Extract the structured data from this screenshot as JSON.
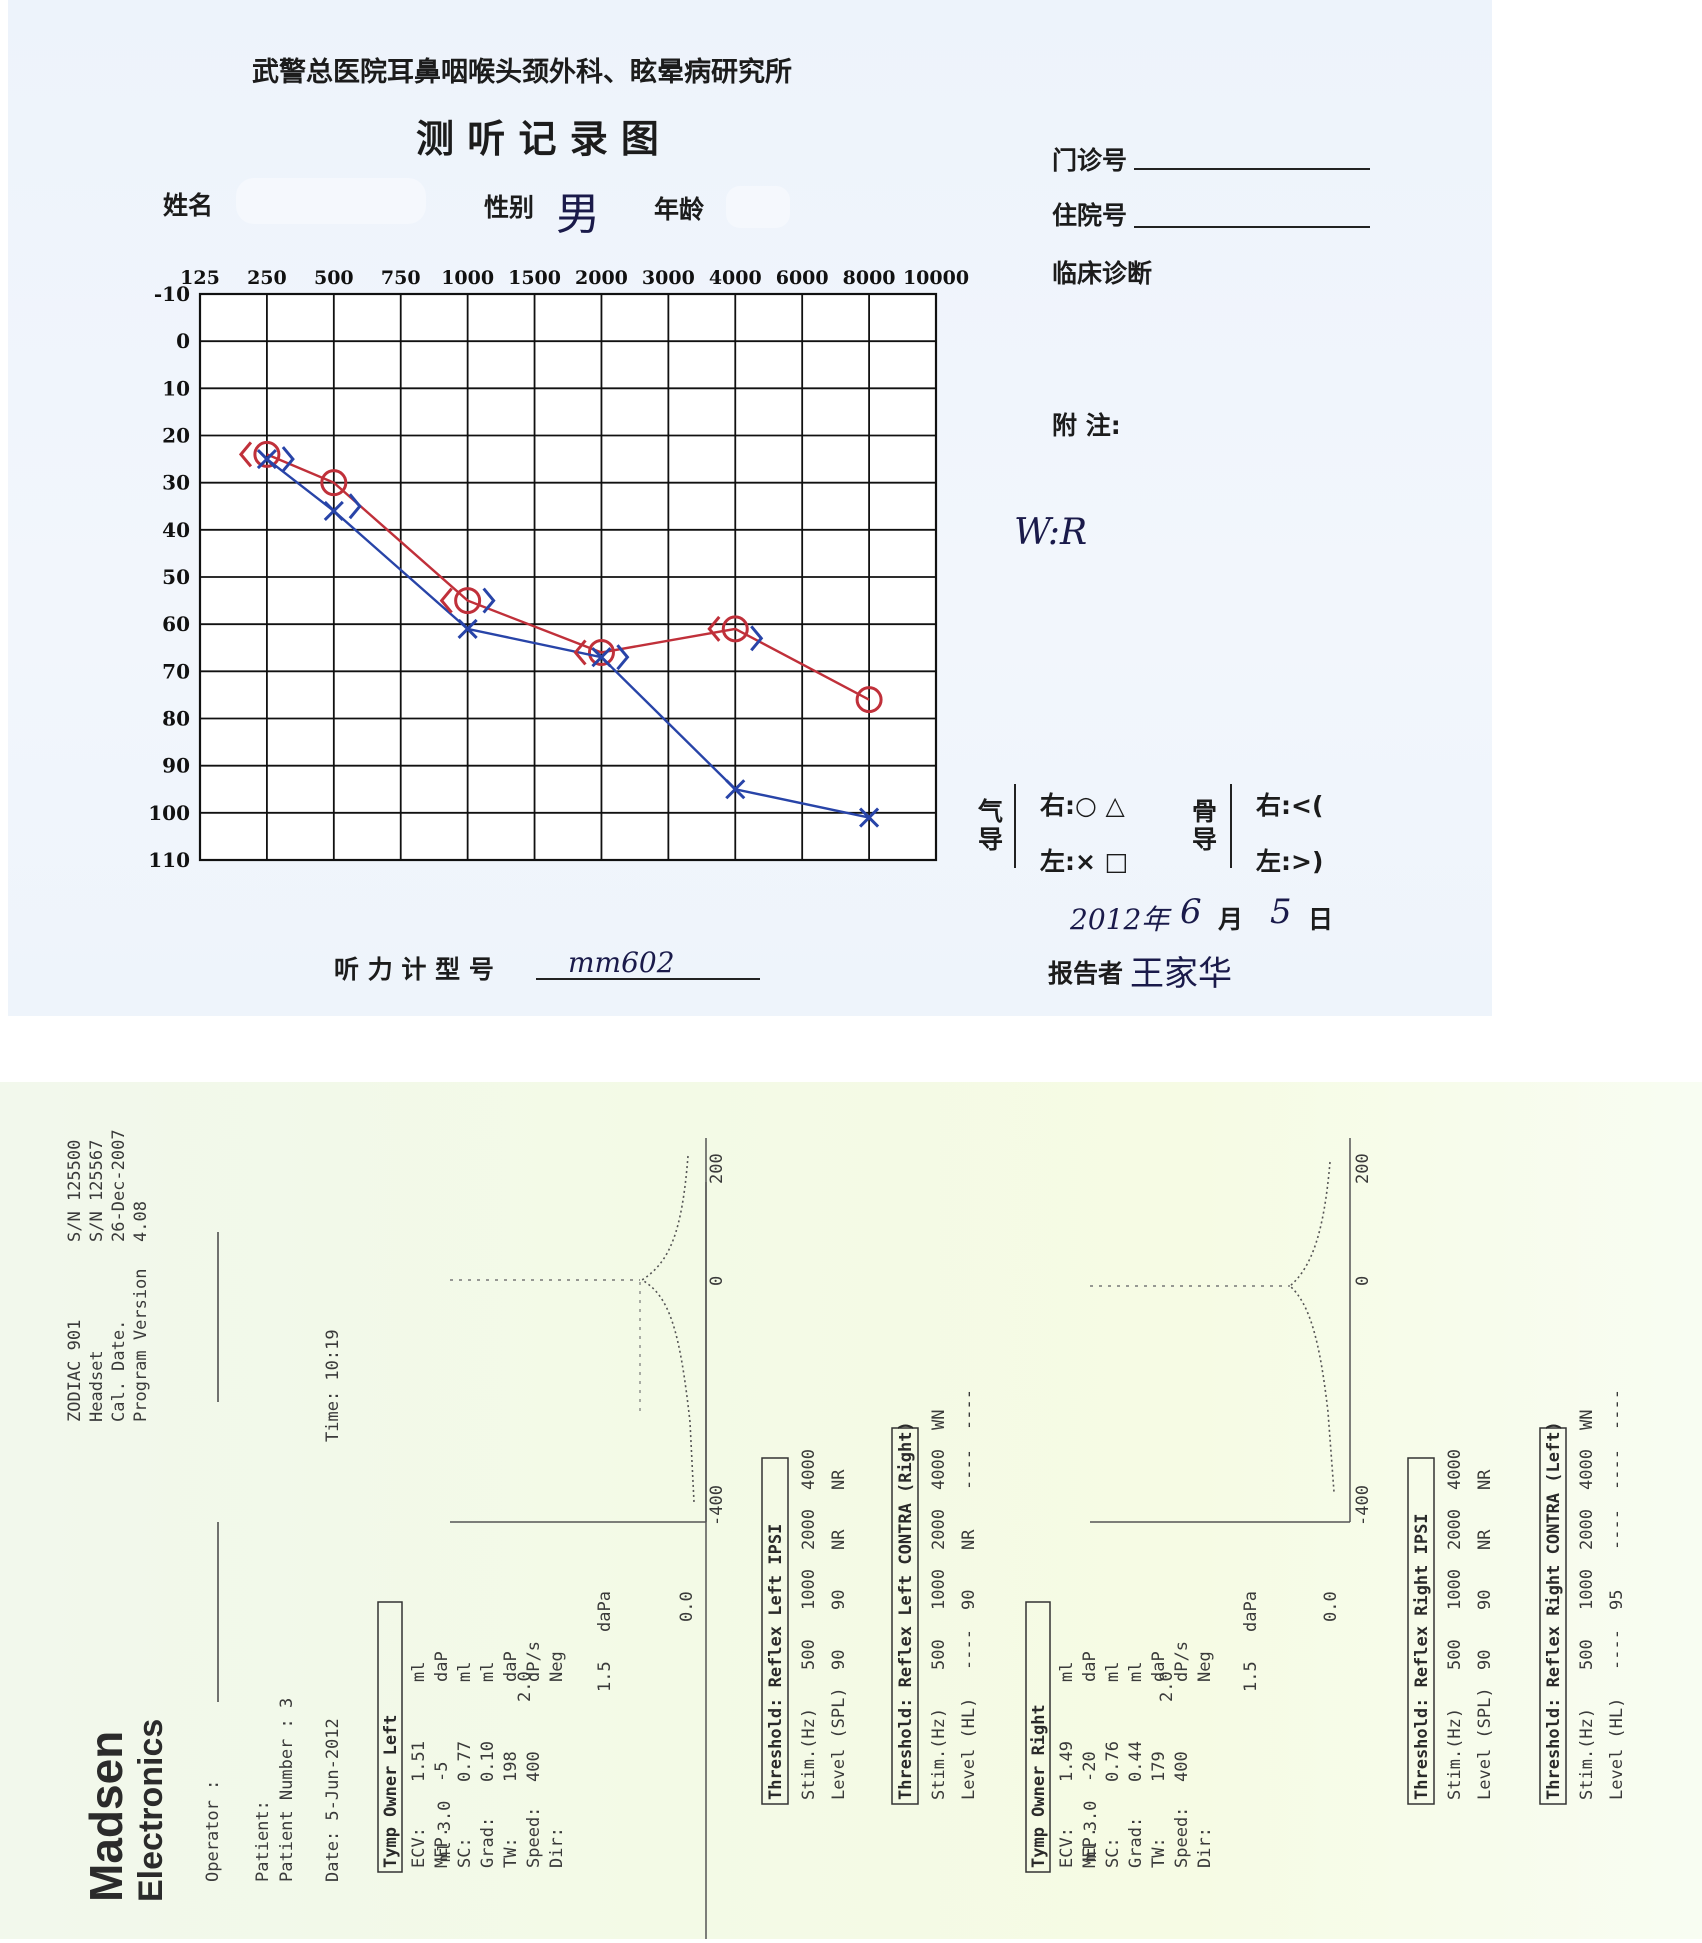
{
  "form": {
    "hospital_title": "武警总医院耳鼻咽喉头颈外科、眩晕病研究所",
    "record_title": "测 听 记 录 图",
    "name_label": "姓名",
    "gender_label": "性别",
    "gender_value": "男",
    "age_label": "年龄",
    "outpatient_label": "门诊号",
    "inpatient_label": "住院号",
    "diagnosis_label": "临床诊断",
    "notes_label": "附  注:",
    "notes_value": "W:R",
    "audiometer_label": "听 力 计 型 号",
    "audiometer_value": "mm602",
    "date_year": "2012年",
    "date_month_num": "6",
    "date_month_label": "月",
    "date_day_num": "5",
    "date_day_label": "日",
    "reporter_label": "报告者",
    "reporter_value": "王家华"
  },
  "legend": {
    "air_label": "气导",
    "bone_label": "骨导",
    "air_right": "右:○ △",
    "air_left": "左:× □",
    "bone_right": "右:<(",
    "bone_left": "左:>)"
  },
  "chart_data": {
    "type": "line",
    "title": "",
    "xlabel": "",
    "ylabel": "",
    "x_ticks": [
      "125",
      "250",
      "500",
      "750",
      "1000",
      "1500",
      "2000",
      "3000",
      "4000",
      "6000",
      "8000",
      "10000"
    ],
    "y_ticks": [
      -10,
      0,
      10,
      20,
      30,
      40,
      50,
      60,
      70,
      80,
      90,
      100,
      110
    ],
    "ylim": [
      -10,
      110
    ],
    "y_inverted": true,
    "grid": true,
    "colors": {
      "right": "#c0303a",
      "left": "#2844a8"
    },
    "series": [
      {
        "key": "right_air",
        "marker": "O",
        "x": [
          250,
          500,
          1000,
          2000,
          4000,
          8000
        ],
        "y": [
          24,
          30,
          55,
          66,
          61,
          76
        ]
      },
      {
        "key": "left_air",
        "marker": "X",
        "x": [
          250,
          500,
          1000,
          2000,
          4000,
          8000
        ],
        "y": [
          25,
          36,
          61,
          67,
          95,
          101
        ]
      },
      {
        "key": "right_bone",
        "marker": "<",
        "x": [
          250,
          1000,
          2000,
          4000
        ],
        "y": [
          24,
          55,
          66,
          61
        ]
      },
      {
        "key": "left_bone",
        "marker": ">",
        "x": [
          250,
          500,
          1000,
          2000,
          4000
        ],
        "y": [
          25,
          35,
          55,
          67,
          63
        ]
      }
    ]
  },
  "printout": {
    "brand_name": "Madsen",
    "brand_sub": "Electronics",
    "device_lines": [
      "ZODIAC 901",
      "Headset",
      "Cal. Date.",
      "Program Version"
    ],
    "device_values": [
      "S/N 125500",
      "S/N 125567",
      "26-Dec-2007",
      "4.08"
    ],
    "operator_label": "Operator :",
    "patient_label": "Patient:",
    "patient_number_label": "Patient Number : 3",
    "date_label": "Date: 5-Jun-2012",
    "time_label": "Time: 10:19",
    "left": {
      "tymp_title": "Tymp Owner Left",
      "tymp_rows": [
        [
          "ECV:",
          "1.51",
          "ml"
        ],
        [
          "MEP.",
          "-5",
          "daP"
        ],
        [
          "SC:",
          "0.77",
          "ml"
        ],
        [
          "Grad:",
          "0.10",
          "ml"
        ],
        [
          "TW:",
          "198",
          "daP"
        ],
        [
          "Speed:",
          "400",
          "dP/s"
        ],
        [
          "Dir:",
          "",
          "Neg"
        ]
      ],
      "axis_ml": "ml 3.0",
      "axis_20": "2.0",
      "axis_15": "1.5",
      "axis_00": "0.0",
      "axis_400": "-400",
      "axis_0": "0",
      "axis_200": "200",
      "daPa": "daPa",
      "ipsi_title": "Threshold: Reflex Left IPSI",
      "ipsi_head": [
        "Stim.(Hz)",
        "500",
        "1000",
        "2000",
        "4000"
      ],
      "ipsi_vals": [
        "Level (SPL)",
        "90",
        "90",
        "NR",
        "NR"
      ],
      "contra_title": "Threshold: Reflex Left CONTRA (Right)",
      "contra_head": [
        "Stim.(Hz)",
        "500",
        "1000",
        "2000",
        "4000",
        "WN"
      ],
      "contra_vals": [
        "Level (HL)",
        "----",
        "90",
        "NR",
        "----",
        "----"
      ]
    },
    "right": {
      "tymp_title": "Tymp Owner Right",
      "tymp_rows": [
        [
          "ECV:",
          "1.49",
          "ml"
        ],
        [
          "MEP.",
          "-20",
          "daP"
        ],
        [
          "SC:",
          "0.76",
          "ml"
        ],
        [
          "Grad:",
          "0.44",
          "ml"
        ],
        [
          "TW:",
          "179",
          "daP"
        ],
        [
          "Speed:",
          "400",
          "dP/s"
        ],
        [
          "Dir:",
          "",
          "Neg"
        ]
      ],
      "axis_ml": "ml 3.0",
      "axis_20": "2.0",
      "axis_15": "1.5",
      "axis_00": "0.0",
      "axis_400": "-400",
      "axis_0": "0",
      "axis_200": "200",
      "daPa": "daPa",
      "ipsi_title": "Threshold: Reflex Right IPSI",
      "ipsi_head": [
        "Stim.(Hz)",
        "500",
        "1000",
        "2000",
        "4000"
      ],
      "ipsi_vals": [
        "Level (SPL)",
        "90",
        "90",
        "NR",
        "NR"
      ],
      "contra_title": "Threshold: Reflex Right CONTRA (Left)",
      "contra_head": [
        "Stim.(Hz)",
        "500",
        "1000",
        "2000",
        "4000",
        "WN"
      ],
      "contra_vals": [
        "Level (HL)",
        "----",
        "95",
        "----",
        "----",
        "----"
      ]
    }
  }
}
